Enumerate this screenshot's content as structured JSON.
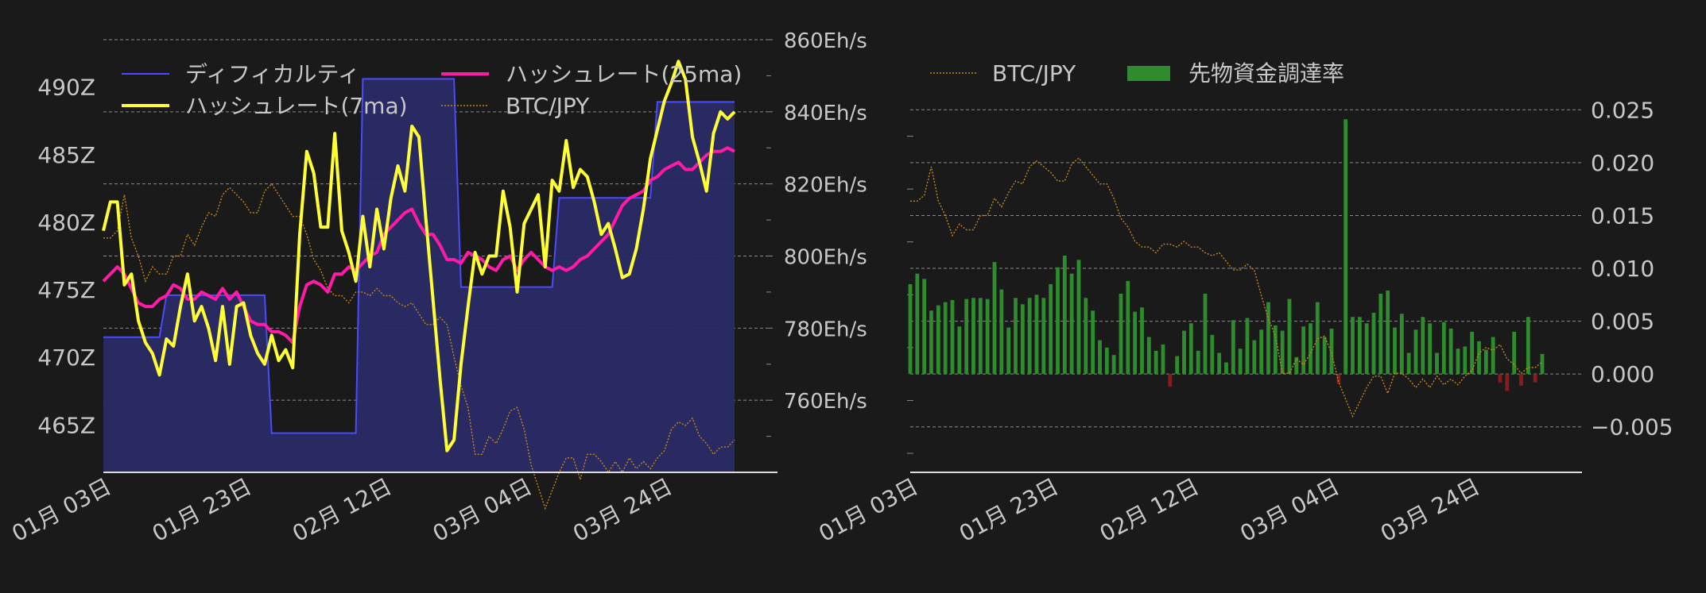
{
  "colors": {
    "background": "#1a1a1a",
    "text": "#c8c8c8",
    "grid": "#bbbbbb",
    "difficulty_fill": "#2b2b66",
    "difficulty_line": "#4a4aff",
    "hashrate_7ma": "#ffff33",
    "hashrate_25ma": "#ff1aa8",
    "btc_jpy": "#c8861a",
    "funding_positive": "#2e8b2e",
    "funding_negative": "#8b1a1a"
  },
  "chart_data": [
    {
      "type": "line",
      "x_ticks": [
        "01月 03日",
        "01月 23日",
        "02月 12日",
        "03月 04日",
        "03月 24日"
      ],
      "x_range": [
        0,
        90
      ],
      "x_tick_positions": [
        0,
        20,
        40,
        60,
        80
      ],
      "y_left": {
        "unit": "Z",
        "ticks": [
          "465Z",
          "470Z",
          "475Z",
          "480Z",
          "485Z",
          "490Z"
        ],
        "tick_values": [
          465,
          470,
          475,
          480,
          485,
          490
        ],
        "range": [
          461.5,
          493.5
        ]
      },
      "y_right": {
        "unit": "Eh/s",
        "ticks": [
          "760Eh/s",
          "780Eh/s",
          "800Eh/s",
          "820Eh/s",
          "840Eh/s",
          "860Eh/s"
        ],
        "tick_values": [
          760,
          780,
          800,
          820,
          840,
          860
        ],
        "range": [
          740,
          860
        ]
      },
      "legend": {
        "position": "top",
        "entries": [
          "ディフィカルティ",
          "ハッシュレート(25ma)",
          "ハッシュレート(7ma)",
          "BTC/JPY"
        ]
      },
      "series": [
        {
          "name": "ディフィカルティ",
          "kind": "step-area",
          "axis": "left",
          "x": [
            0,
            8,
            9,
            23,
            24,
            36,
            37,
            50,
            51,
            64,
            65,
            78,
            79,
            90
          ],
          "values": [
            471.5,
            471.5,
            474.6,
            474.6,
            464.4,
            464.4,
            490.6,
            490.6,
            475.2,
            475.2,
            481.8,
            481.8,
            488.9,
            488.9
          ]
        },
        {
          "name": "ハッシュレート(7ma)",
          "kind": "line",
          "axis": "right",
          "x": [
            0,
            1,
            2,
            3,
            4,
            5,
            6,
            7,
            8,
            9,
            10,
            11,
            12,
            13,
            14,
            15,
            16,
            17,
            18,
            19,
            20,
            21,
            22,
            23,
            24,
            25,
            26,
            27,
            28,
            29,
            30,
            31,
            32,
            33,
            34,
            35,
            36,
            37,
            38,
            39,
            40,
            41,
            42,
            43,
            44,
            45,
            46,
            47,
            48,
            49,
            50,
            51,
            52,
            53,
            54,
            55,
            56,
            57,
            58,
            59,
            60,
            61,
            62,
            63,
            64,
            65,
            66,
            67,
            68,
            69,
            70,
            71,
            72,
            73,
            74,
            75,
            76,
            77,
            78,
            79,
            80,
            81,
            82,
            83,
            84,
            85,
            86,
            87,
            88,
            89,
            90
          ],
          "values": [
            807,
            815,
            815,
            792,
            795,
            782,
            776,
            773,
            767,
            777,
            775,
            786,
            795,
            782,
            786,
            780,
            771,
            786,
            770,
            786,
            787,
            778,
            773,
            770,
            778,
            771,
            774,
            769,
            806,
            829,
            823,
            808,
            808,
            834,
            807,
            801,
            793,
            811,
            797,
            813,
            802,
            816,
            825,
            818,
            836,
            833,
            810,
            788,
            766,
            746,
            749,
            770,
            786,
            801,
            795,
            800,
            800,
            818,
            808,
            790,
            809,
            813,
            817,
            797,
            821,
            818,
            832,
            819,
            824,
            822,
            815,
            806,
            809,
            802,
            794,
            795,
            802,
            813,
            827,
            835,
            843,
            848,
            854,
            849,
            833,
            826,
            818,
            834,
            840,
            838,
            840
          ]
        },
        {
          "name": "ハッシュレート(25ma)",
          "kind": "line",
          "axis": "right",
          "x": [
            0,
            1,
            2,
            3,
            4,
            5,
            6,
            7,
            8,
            9,
            10,
            11,
            12,
            13,
            14,
            15,
            16,
            17,
            18,
            19,
            20,
            21,
            22,
            23,
            24,
            25,
            26,
            27,
            28,
            29,
            30,
            31,
            32,
            33,
            34,
            35,
            36,
            37,
            38,
            39,
            40,
            41,
            42,
            43,
            44,
            45,
            46,
            47,
            48,
            49,
            50,
            51,
            52,
            53,
            54,
            55,
            56,
            57,
            58,
            59,
            60,
            61,
            62,
            63,
            64,
            65,
            66,
            67,
            68,
            69,
            70,
            71,
            72,
            73,
            74,
            75,
            76,
            77,
            78,
            79,
            80,
            81,
            82,
            83,
            84,
            85,
            86,
            87,
            88,
            89,
            90
          ],
          "values": [
            793,
            795,
            797,
            795,
            791,
            787,
            786,
            786,
            788,
            789,
            792,
            791,
            788,
            788,
            790,
            789,
            788,
            791,
            788,
            790,
            786,
            782,
            781,
            781,
            779,
            779,
            778,
            776,
            786,
            792,
            793,
            792,
            790,
            795,
            795,
            797,
            796,
            798,
            800,
            801,
            806,
            808,
            810,
            812,
            813,
            809,
            806,
            806,
            803,
            799,
            799,
            798,
            801,
            800,
            799,
            797,
            796,
            799,
            800,
            796,
            799,
            801,
            799,
            797,
            796,
            797,
            796,
            797,
            799,
            800,
            802,
            804,
            806,
            810,
            814,
            816,
            817,
            818,
            821,
            822,
            824,
            825,
            826,
            824,
            824,
            826,
            828,
            829,
            829,
            830,
            829
          ]
        },
        {
          "name": "BTC/JPY",
          "kind": "dotted-line",
          "axis": "hidden",
          "x": [
            0,
            1,
            2,
            3,
            4,
            5,
            6,
            7,
            8,
            9,
            10,
            11,
            12,
            13,
            14,
            15,
            16,
            17,
            18,
            19,
            20,
            21,
            22,
            23,
            24,
            25,
            26,
            27,
            28,
            29,
            30,
            31,
            32,
            33,
            34,
            35,
            36,
            37,
            38,
            39,
            40,
            41,
            42,
            43,
            44,
            45,
            46,
            47,
            48,
            49,
            50,
            51,
            52,
            53,
            54,
            55,
            56,
            57,
            58,
            59,
            60,
            61,
            62,
            63,
            64,
            65,
            66,
            67,
            68,
            69,
            70,
            71,
            72,
            73,
            74,
            75,
            76,
            77,
            78,
            79,
            80,
            81,
            82,
            83,
            84,
            85,
            86,
            87,
            88,
            89,
            90
          ],
          "values": [
            805,
            805,
            807,
            817,
            805,
            800,
            793,
            797,
            795,
            795,
            800,
            800,
            806,
            803,
            808,
            812,
            811,
            817,
            819,
            817,
            815,
            812,
            812,
            818,
            820,
            817,
            814,
            811,
            811,
            806,
            799,
            796,
            791,
            789,
            789,
            787,
            790,
            790,
            789,
            791,
            789,
            789,
            787,
            786,
            787,
            784,
            781,
            781,
            783,
            781,
            772,
            764,
            758,
            745,
            745,
            750,
            748,
            752,
            757,
            758,
            752,
            742,
            736,
            730,
            735,
            740,
            744,
            744,
            738,
            745,
            745,
            743,
            740,
            743,
            740,
            744,
            741,
            743,
            741,
            744,
            746,
            752,
            754,
            753,
            755,
            750,
            748,
            745,
            747,
            747,
            749
          ]
        }
      ]
    },
    {
      "type": "bar",
      "x_ticks": [
        "01月 03日",
        "01月 23日",
        "02月 12日",
        "03月 04日",
        "03月 24日"
      ],
      "x_range": [
        0,
        90
      ],
      "x_tick_positions": [
        0,
        20,
        40,
        60,
        80
      ],
      "y_right": {
        "ticks": [
          "0.025",
          "0.020",
          "0.015",
          "0.010",
          "0.005",
          "0.000",
          "−0.005"
        ],
        "tick_values": [
          0.025,
          0.02,
          0.015,
          0.01,
          0.005,
          0.0,
          -0.005
        ],
        "range": [
          -0.0093,
          0.0275
        ]
      },
      "legend": {
        "position": "top-left",
        "entries": [
          "BTC/JPY",
          "先物資金調達率"
        ]
      },
      "series": [
        {
          "name": "先物資金調達率",
          "kind": "bar",
          "values": [
            0.0085,
            0.0095,
            0.009,
            0.006,
            0.0065,
            0.0068,
            0.007,
            0.0045,
            0.0071,
            0.0072,
            0.0072,
            0.0071,
            0.0106,
            0.008,
            0.0044,
            0.0072,
            0.0066,
            0.0072,
            0.0075,
            0.0072,
            0.0085,
            0.0101,
            0.0112,
            0.0095,
            0.0108,
            0.0072,
            0.006,
            0.0032,
            0.0025,
            0.0018,
            0.0076,
            0.0088,
            0.0059,
            0.0063,
            0.0035,
            0.0022,
            0.0028,
            -0.0012,
            0.0017,
            0.0041,
            0.0048,
            0.0022,
            0.0076,
            0.0037,
            0.002,
            0.0011,
            0.0051,
            0.0024,
            0.0053,
            0.0032,
            0.0042,
            0.0068,
            0.0046,
            0.0041,
            0.0071,
            0.0016,
            0.0045,
            0.0048,
            0.0068,
            0.0035,
            0.0043,
            -0.0009,
            0.0241,
            0.0054,
            0.0054,
            0.0048,
            0.0058,
            0.0076,
            0.0079,
            0.0044,
            0.0057,
            0.002,
            0.0042,
            0.0054,
            0.0048,
            0.002,
            0.0049,
            0.0043,
            0.0024,
            0.0026,
            0.004,
            0.0031,
            0.0023,
            0.0035,
            -0.0008,
            -0.0016,
            0.004,
            -0.0011,
            0.0054,
            -0.0008,
            0.0019
          ]
        }
      ]
    }
  ],
  "right_btc_series_name": "BTC/JPY"
}
